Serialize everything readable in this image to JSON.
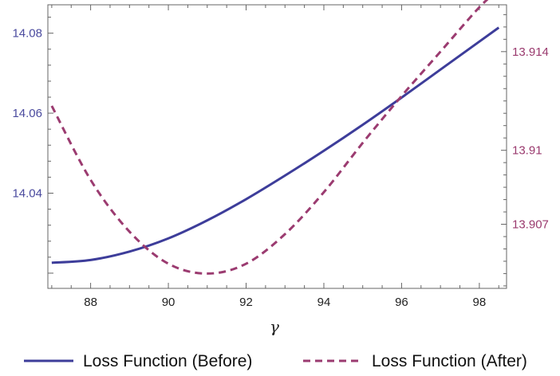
{
  "chart_data": {
    "type": "line",
    "xlabel": "γ",
    "xlim": [
      86.9,
      98.7
    ],
    "x_ticks": [
      88,
      90,
      92,
      94,
      96,
      98
    ],
    "y_left": {
      "ylim": [
        14.0162,
        14.0871
      ],
      "ticks": [
        14.04,
        14.06,
        14.08
      ],
      "tick_labels": [
        "14.04",
        "14.06",
        "14.08"
      ],
      "color": "#3d3d9a"
    },
    "y_right": {
      "ylim": [
        13.9044,
        13.9159
      ],
      "ticks": [
        13.907,
        13.91,
        13.914
      ],
      "tick_labels": [
        "13.907",
        "13.91",
        "13.914"
      ],
      "color": "#9b3b70"
    },
    "series": [
      {
        "name": "Loss Function (Before)",
        "axis": "left",
        "style": "solid",
        "color": "#3d3d9a",
        "x": [
          87,
          88,
          89,
          90,
          91,
          92,
          93,
          94,
          95,
          96,
          97,
          98,
          98.5
        ],
        "y": [
          14.0226,
          14.0233,
          14.0254,
          14.0287,
          14.0332,
          14.0385,
          14.0444,
          14.0506,
          14.0571,
          14.0639,
          14.0709,
          14.0779,
          14.0814
        ]
      },
      {
        "name": "Loss Function (After)",
        "axis": "right",
        "style": "dashed",
        "color": "#9b3b70",
        "x": [
          87,
          88,
          89,
          90,
          91,
          92,
          93,
          94,
          95,
          96,
          97,
          98,
          98.5
        ],
        "y": [
          13.9118,
          13.9088,
          13.9067,
          13.9054,
          13.905,
          13.9054,
          13.9066,
          13.9083,
          13.9103,
          13.9122,
          13.914,
          13.9158,
          13.9165
        ]
      }
    ],
    "legend_position": "bottom"
  }
}
